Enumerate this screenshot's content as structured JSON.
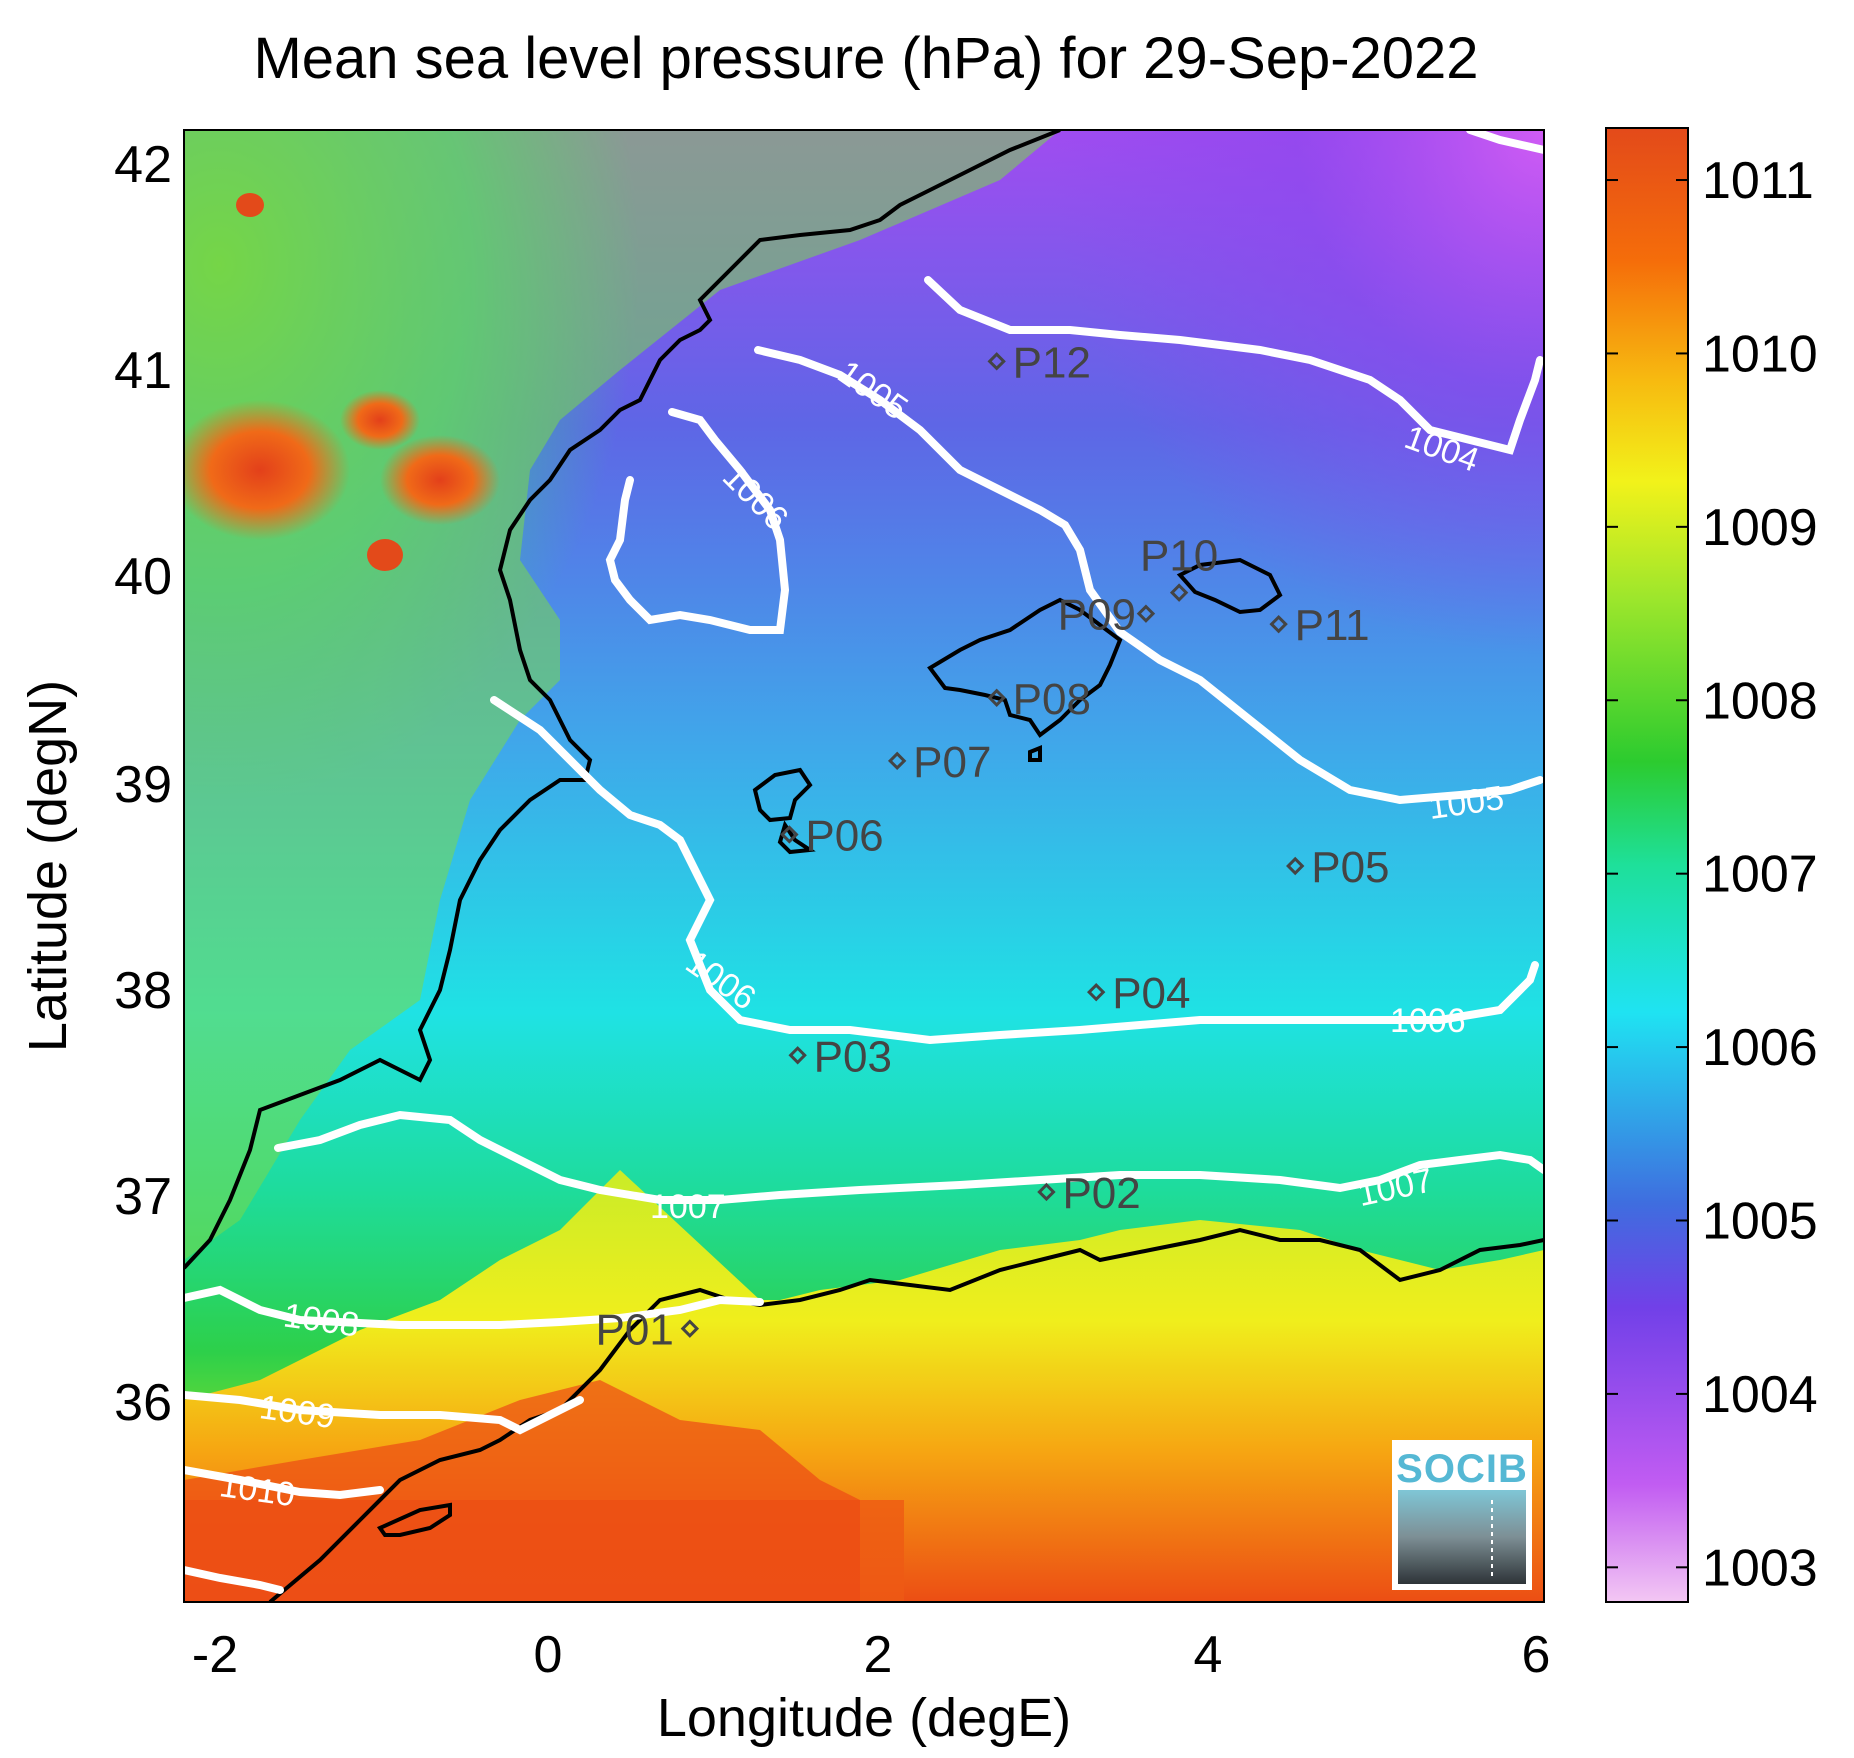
{
  "title": "Mean sea level pressure (hPa) for 29-Sep-2022",
  "xlabel": "Longitude (degE)",
  "ylabel": "Latitude (degN)",
  "x_ticks": [
    "-2",
    "0",
    "2",
    "4",
    "6"
  ],
  "y_ticks": [
    "42",
    "41",
    "40",
    "39",
    "38",
    "37",
    "36"
  ],
  "colorbar": {
    "ticks": [
      "1011",
      "1010",
      "1009",
      "1008",
      "1007",
      "1006",
      "1005",
      "1004",
      "1003"
    ],
    "colors": [
      "#f3c7f3",
      "#c15cf2",
      "#7140e8",
      "#3f6ddf",
      "#1fe3f2",
      "#1ee09a",
      "#2ccb2f",
      "#9ce62c",
      "#f2f21a",
      "#f7b910",
      "#f56d0a",
      "#e34a1a"
    ]
  },
  "stations": [
    {
      "name": "P01",
      "lon": 0.85,
      "lat": 36.5
    },
    {
      "name": "P02",
      "lon": 3.0,
      "lat": 37.15
    },
    {
      "name": "P03",
      "lon": 1.5,
      "lat": 37.8
    },
    {
      "name": "P04",
      "lon": 3.3,
      "lat": 38.1
    },
    {
      "name": "P05",
      "lon": 4.5,
      "lat": 38.7
    },
    {
      "name": "P06",
      "lon": 1.45,
      "lat": 38.85
    },
    {
      "name": "P07",
      "lon": 2.1,
      "lat": 39.2
    },
    {
      "name": "P08",
      "lon": 2.7,
      "lat": 39.5
    },
    {
      "name": "P09",
      "lon": 3.6,
      "lat": 39.9
    },
    {
      "name": "P10",
      "lon": 3.8,
      "lat": 40.0
    },
    {
      "name": "P11",
      "lon": 4.4,
      "lat": 39.85
    },
    {
      "name": "P12",
      "lon": 2.7,
      "lat": 41.1
    }
  ],
  "contour_labels": [
    "1004",
    "1005",
    "1005",
    "1006",
    "1006",
    "1006",
    "1007",
    "1007",
    "1008",
    "1009",
    "1010"
  ],
  "logo": "SOCIB",
  "chart_data": {
    "type": "heatmap",
    "title": "Mean sea level pressure (hPa) for 29-Sep-2022",
    "xlabel": "Longitude (degE)",
    "ylabel": "Latitude (degN)",
    "xlim": [
      -2.2,
      6
    ],
    "ylim": [
      35.2,
      42.2
    ],
    "color_range": [
      1002.8,
      1011.3
    ],
    "units": "hPa",
    "colormap_ticks": [
      1003,
      1004,
      1005,
      1006,
      1007,
      1008,
      1009,
      1010,
      1011
    ],
    "grid": false,
    "legend": "colorbar right"
  }
}
